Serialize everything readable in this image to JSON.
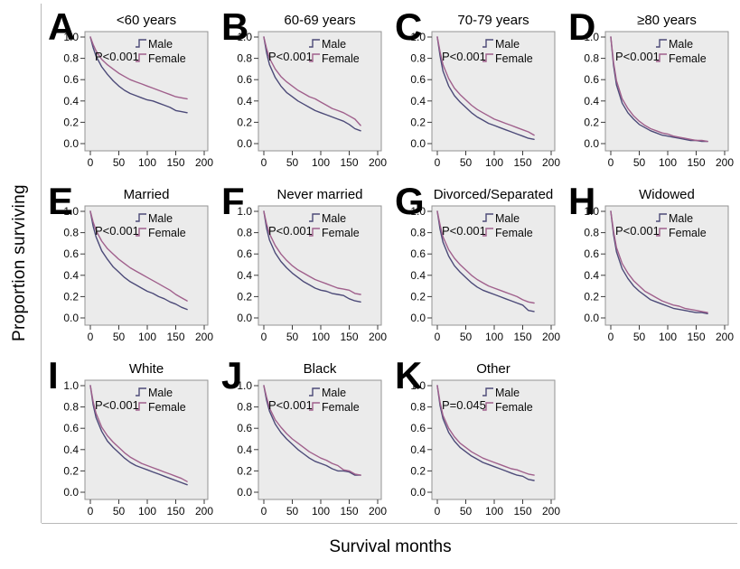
{
  "figure": {
    "y_axis_label": "Proportion surviving",
    "x_axis_label": "Survival months"
  },
  "legend": {
    "male_label": "Male",
    "female_label": "Female",
    "symbol": "step-line-icon"
  },
  "colors": {
    "male_line": "#4c4a78",
    "female_line": "#a0608c",
    "panel_background": "#ebebeb",
    "panel_border": "#939393",
    "figure_border": "#b9b9b9",
    "text": "#0a0a0a"
  },
  "axes": {
    "xlim": [
      0,
      200
    ],
    "ylim": [
      0.0,
      1.0
    ],
    "x_tick_values": [
      0,
      50,
      100,
      150,
      200
    ],
    "x_tick_labels": [
      "0",
      "50",
      "100",
      "150",
      "200"
    ],
    "y_tick_values": [
      1.0,
      0.8,
      0.6,
      0.4,
      0.2,
      0.0
    ],
    "y_tick_labels": [
      "1.0",
      "0.8",
      "0.6",
      "0.4",
      "0.2",
      "0.0"
    ],
    "grid": false,
    "legend_position": "top-right-inside"
  },
  "chart_data": [
    {
      "type": "line",
      "letter": "A",
      "title": "<60 years",
      "p_value": "P<0.001",
      "x": [
        0,
        5,
        10,
        20,
        30,
        40,
        50,
        60,
        70,
        80,
        90,
        100,
        110,
        120,
        130,
        140,
        150,
        160,
        170
      ],
      "series": [
        {
          "name": "Male",
          "values": [
            1.0,
            0.9,
            0.82,
            0.72,
            0.65,
            0.59,
            0.54,
            0.5,
            0.47,
            0.45,
            0.43,
            0.41,
            0.4,
            0.38,
            0.36,
            0.34,
            0.31,
            0.3,
            0.29
          ]
        },
        {
          "name": "Female",
          "values": [
            1.0,
            0.93,
            0.87,
            0.79,
            0.74,
            0.7,
            0.66,
            0.63,
            0.6,
            0.58,
            0.56,
            0.54,
            0.52,
            0.5,
            0.48,
            0.46,
            0.44,
            0.43,
            0.42
          ]
        }
      ]
    },
    {
      "type": "line",
      "letter": "B",
      "title": "60-69 years",
      "p_value": "P<0.001",
      "x": [
        0,
        5,
        10,
        20,
        30,
        40,
        50,
        60,
        70,
        80,
        90,
        100,
        110,
        120,
        130,
        140,
        150,
        160,
        170
      ],
      "series": [
        {
          "name": "Male",
          "values": [
            1.0,
            0.85,
            0.74,
            0.62,
            0.54,
            0.48,
            0.44,
            0.4,
            0.37,
            0.34,
            0.31,
            0.29,
            0.27,
            0.25,
            0.23,
            0.21,
            0.18,
            0.14,
            0.12
          ]
        },
        {
          "name": "Female",
          "values": [
            1.0,
            0.89,
            0.8,
            0.7,
            0.63,
            0.58,
            0.54,
            0.5,
            0.47,
            0.44,
            0.42,
            0.39,
            0.36,
            0.33,
            0.31,
            0.29,
            0.26,
            0.23,
            0.17
          ]
        }
      ]
    },
    {
      "type": "line",
      "letter": "C",
      "title": "70-79 years",
      "p_value": "P<0.001",
      "x": [
        0,
        5,
        10,
        20,
        30,
        40,
        50,
        60,
        70,
        80,
        90,
        100,
        110,
        120,
        130,
        140,
        150,
        160,
        170
      ],
      "series": [
        {
          "name": "Male",
          "values": [
            1.0,
            0.82,
            0.68,
            0.54,
            0.45,
            0.39,
            0.34,
            0.29,
            0.25,
            0.22,
            0.19,
            0.17,
            0.15,
            0.13,
            0.11,
            0.09,
            0.07,
            0.05,
            0.04
          ]
        },
        {
          "name": "Female",
          "values": [
            1.0,
            0.86,
            0.74,
            0.61,
            0.52,
            0.46,
            0.41,
            0.36,
            0.32,
            0.29,
            0.26,
            0.23,
            0.21,
            0.19,
            0.17,
            0.15,
            0.13,
            0.11,
            0.08
          ]
        }
      ]
    },
    {
      "type": "line",
      "letter": "D",
      "title": "≥80 years",
      "p_value": "P<0.001",
      "x": [
        0,
        5,
        10,
        20,
        30,
        40,
        50,
        60,
        70,
        80,
        90,
        100,
        110,
        120,
        130,
        140,
        150,
        160,
        170
      ],
      "series": [
        {
          "name": "Male",
          "values": [
            1.0,
            0.73,
            0.55,
            0.38,
            0.29,
            0.23,
            0.18,
            0.15,
            0.12,
            0.1,
            0.08,
            0.07,
            0.06,
            0.05,
            0.04,
            0.03,
            0.03,
            0.02,
            0.02
          ]
        },
        {
          "name": "Female",
          "values": [
            1.0,
            0.76,
            0.59,
            0.42,
            0.33,
            0.26,
            0.21,
            0.17,
            0.14,
            0.12,
            0.1,
            0.09,
            0.07,
            0.06,
            0.05,
            0.04,
            0.03,
            0.03,
            0.02
          ]
        }
      ]
    },
    {
      "type": "line",
      "letter": "E",
      "title": "Married",
      "p_value": "P<0.001",
      "x": [
        0,
        5,
        10,
        20,
        30,
        40,
        50,
        60,
        70,
        80,
        90,
        100,
        110,
        120,
        130,
        140,
        150,
        160,
        170
      ],
      "series": [
        {
          "name": "Male",
          "values": [
            1.0,
            0.86,
            0.76,
            0.63,
            0.55,
            0.48,
            0.43,
            0.38,
            0.34,
            0.31,
            0.28,
            0.25,
            0.23,
            0.2,
            0.18,
            0.15,
            0.13,
            0.1,
            0.08
          ]
        },
        {
          "name": "Female",
          "values": [
            1.0,
            0.9,
            0.82,
            0.72,
            0.65,
            0.6,
            0.55,
            0.51,
            0.47,
            0.44,
            0.41,
            0.38,
            0.35,
            0.32,
            0.29,
            0.26,
            0.22,
            0.19,
            0.16
          ]
        }
      ]
    },
    {
      "type": "line",
      "letter": "F",
      "title": "Never married",
      "p_value": "P<0.001",
      "x": [
        0,
        5,
        10,
        20,
        30,
        40,
        50,
        60,
        70,
        80,
        90,
        100,
        110,
        120,
        130,
        140,
        150,
        160,
        170
      ],
      "series": [
        {
          "name": "Male",
          "values": [
            1.0,
            0.84,
            0.73,
            0.61,
            0.53,
            0.47,
            0.42,
            0.38,
            0.34,
            0.31,
            0.28,
            0.26,
            0.25,
            0.23,
            0.22,
            0.21,
            0.18,
            0.16,
            0.15
          ]
        },
        {
          "name": "Female",
          "values": [
            1.0,
            0.88,
            0.79,
            0.68,
            0.6,
            0.54,
            0.49,
            0.45,
            0.42,
            0.39,
            0.36,
            0.34,
            0.32,
            0.3,
            0.28,
            0.27,
            0.26,
            0.23,
            0.22
          ]
        }
      ]
    },
    {
      "type": "line",
      "letter": "G",
      "title": "Divorced/Separated",
      "p_value": "P<0.001",
      "x": [
        0,
        5,
        10,
        20,
        30,
        40,
        50,
        60,
        70,
        80,
        90,
        100,
        110,
        120,
        130,
        140,
        150,
        160,
        170
      ],
      "series": [
        {
          "name": "Male",
          "values": [
            1.0,
            0.83,
            0.71,
            0.58,
            0.49,
            0.43,
            0.38,
            0.33,
            0.29,
            0.26,
            0.24,
            0.22,
            0.2,
            0.18,
            0.16,
            0.14,
            0.12,
            0.07,
            0.06
          ]
        },
        {
          "name": "Female",
          "values": [
            1.0,
            0.87,
            0.76,
            0.64,
            0.56,
            0.5,
            0.45,
            0.4,
            0.36,
            0.33,
            0.3,
            0.28,
            0.26,
            0.24,
            0.22,
            0.2,
            0.17,
            0.15,
            0.14
          ]
        }
      ]
    },
    {
      "type": "line",
      "letter": "H",
      "title": "Widowed",
      "p_value": "P<0.001",
      "x": [
        0,
        5,
        10,
        20,
        30,
        40,
        50,
        60,
        70,
        80,
        90,
        100,
        110,
        120,
        130,
        140,
        150,
        160,
        170
      ],
      "series": [
        {
          "name": "Male",
          "values": [
            1.0,
            0.78,
            0.62,
            0.46,
            0.37,
            0.3,
            0.25,
            0.21,
            0.17,
            0.15,
            0.13,
            0.11,
            0.09,
            0.08,
            0.07,
            0.06,
            0.05,
            0.05,
            0.04
          ]
        },
        {
          "name": "Female",
          "values": [
            1.0,
            0.81,
            0.66,
            0.51,
            0.42,
            0.35,
            0.3,
            0.25,
            0.22,
            0.19,
            0.16,
            0.14,
            0.12,
            0.11,
            0.09,
            0.08,
            0.07,
            0.06,
            0.05
          ]
        }
      ]
    },
    {
      "type": "line",
      "letter": "I",
      "title": "White",
      "p_value": "P<0.001",
      "x": [
        0,
        5,
        10,
        20,
        30,
        40,
        50,
        60,
        70,
        80,
        90,
        100,
        110,
        120,
        130,
        140,
        150,
        160,
        170
      ],
      "series": [
        {
          "name": "Male",
          "values": [
            1.0,
            0.82,
            0.7,
            0.57,
            0.48,
            0.42,
            0.37,
            0.32,
            0.28,
            0.25,
            0.23,
            0.21,
            0.19,
            0.17,
            0.15,
            0.13,
            0.11,
            0.09,
            0.07
          ]
        },
        {
          "name": "Female",
          "values": [
            1.0,
            0.85,
            0.74,
            0.61,
            0.53,
            0.47,
            0.42,
            0.37,
            0.33,
            0.3,
            0.27,
            0.25,
            0.23,
            0.21,
            0.19,
            0.17,
            0.15,
            0.13,
            0.1
          ]
        }
      ]
    },
    {
      "type": "line",
      "letter": "J",
      "title": "Black",
      "p_value": "P<0.001",
      "x": [
        0,
        5,
        10,
        20,
        30,
        40,
        50,
        60,
        70,
        80,
        90,
        100,
        110,
        120,
        130,
        140,
        150,
        160,
        170
      ],
      "series": [
        {
          "name": "Male",
          "values": [
            1.0,
            0.86,
            0.76,
            0.64,
            0.56,
            0.5,
            0.45,
            0.4,
            0.36,
            0.32,
            0.29,
            0.27,
            0.25,
            0.22,
            0.2,
            0.2,
            0.19,
            0.16,
            0.16
          ]
        },
        {
          "name": "Female",
          "values": [
            1.0,
            0.89,
            0.79,
            0.68,
            0.61,
            0.55,
            0.5,
            0.46,
            0.42,
            0.38,
            0.35,
            0.32,
            0.3,
            0.27,
            0.25,
            0.21,
            0.2,
            0.17,
            0.16
          ]
        }
      ]
    },
    {
      "type": "line",
      "letter": "K",
      "title": "Other",
      "p_value": "P=0.045",
      "x": [
        0,
        5,
        10,
        20,
        30,
        40,
        50,
        60,
        70,
        80,
        90,
        100,
        110,
        120,
        130,
        140,
        150,
        160,
        170
      ],
      "series": [
        {
          "name": "Male",
          "values": [
            1.0,
            0.81,
            0.69,
            0.56,
            0.48,
            0.42,
            0.38,
            0.34,
            0.31,
            0.28,
            0.26,
            0.24,
            0.22,
            0.2,
            0.18,
            0.16,
            0.15,
            0.12,
            0.11
          ]
        },
        {
          "name": "Female",
          "values": [
            1.0,
            0.84,
            0.72,
            0.6,
            0.52,
            0.46,
            0.42,
            0.38,
            0.35,
            0.32,
            0.3,
            0.28,
            0.26,
            0.24,
            0.22,
            0.21,
            0.19,
            0.17,
            0.16
          ]
        }
      ]
    }
  ]
}
